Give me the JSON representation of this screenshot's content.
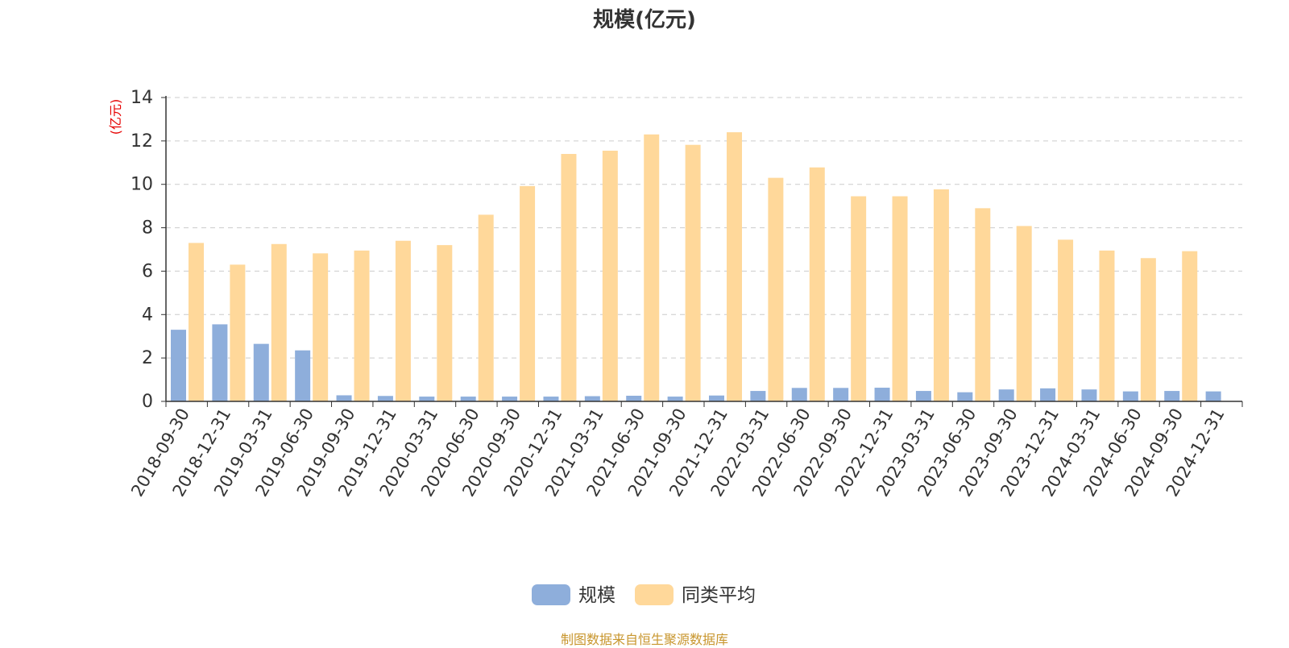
{
  "chart_data": {
    "type": "bar",
    "title": "规模(亿元)",
    "ylabel": "(亿元)",
    "xlabel": "",
    "ylim": [
      0,
      14
    ],
    "yticks": [
      0,
      2,
      4,
      6,
      8,
      10,
      12,
      14
    ],
    "grid": true,
    "legend_position": "bottom-center",
    "categories": [
      "2018-09-30",
      "2018-12-31",
      "2019-03-31",
      "2019-06-30",
      "2019-09-30",
      "2019-12-31",
      "2020-03-31",
      "2020-06-30",
      "2020-09-30",
      "2020-12-31",
      "2021-03-31",
      "2021-06-30",
      "2021-09-30",
      "2021-12-31",
      "2022-03-31",
      "2022-06-30",
      "2022-09-30",
      "2022-12-31",
      "2023-03-31",
      "2023-06-30",
      "2023-09-30",
      "2023-12-31",
      "2024-03-31",
      "2024-06-30",
      "2024-09-30",
      "2024-12-31"
    ],
    "series": [
      {
        "name": "规模",
        "color": "#8eaedb",
        "values": [
          3.3,
          3.55,
          2.65,
          2.35,
          0.28,
          0.25,
          0.22,
          0.22,
          0.22,
          0.22,
          0.24,
          0.26,
          0.22,
          0.27,
          0.48,
          0.62,
          0.62,
          0.63,
          0.48,
          0.42,
          0.55,
          0.6,
          0.55,
          0.46,
          0.48,
          0.46
        ]
      },
      {
        "name": "同类平均",
        "color": "#ffd89a",
        "values": [
          7.3,
          6.3,
          7.25,
          6.82,
          6.95,
          7.4,
          7.2,
          8.6,
          9.92,
          11.4,
          11.55,
          12.3,
          11.82,
          12.4,
          10.3,
          10.78,
          9.45,
          9.45,
          9.77,
          8.9,
          8.08,
          7.45,
          6.95,
          6.6,
          6.92,
          null
        ]
      }
    ],
    "source": "制图数据来自恒生聚源数据库"
  }
}
